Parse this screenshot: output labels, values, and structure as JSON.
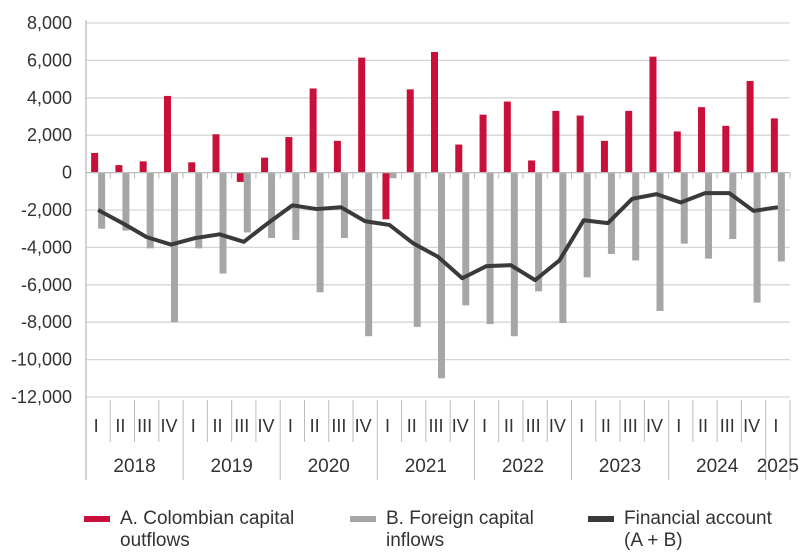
{
  "chart_data": {
    "type": "bar",
    "categories": [
      "I",
      "II",
      "III",
      "IV",
      "I",
      "II",
      "III",
      "IV",
      "I",
      "II",
      "III",
      "IV",
      "I",
      "II",
      "III",
      "IV",
      "I",
      "II",
      "III",
      "IV",
      "I",
      "II",
      "III",
      "IV",
      "I",
      "II",
      "III",
      "IV",
      "I"
    ],
    "years": [
      {
        "label": "2018",
        "quarters": 4
      },
      {
        "label": "2019",
        "quarters": 4
      },
      {
        "label": "2020",
        "quarters": 4
      },
      {
        "label": "2021",
        "quarters": 4
      },
      {
        "label": "2022",
        "quarters": 4
      },
      {
        "label": "2023",
        "quarters": 4
      },
      {
        "label": "2024",
        "quarters": 4
      },
      {
        "label": "2025",
        "quarters": 1
      }
    ],
    "ylim": [
      -12000,
      8000
    ],
    "yticks": [
      8000,
      6000,
      4000,
      2000,
      0,
      -2000,
      -4000,
      -6000,
      -8000,
      -10000,
      -12000
    ],
    "ytick_labels": [
      "8,000",
      "6,000",
      "4,000",
      "2,000",
      "0",
      "-2,000",
      "-4,000",
      "-6,000",
      "-8,000",
      "-10,000",
      "-12,000"
    ],
    "grid": true,
    "legend_placement": "bottom",
    "series": [
      {
        "name": "A. Colombian capital outflows",
        "type": "bar",
        "color": "#c8103a",
        "values": [
          1050,
          400,
          600,
          4100,
          550,
          2050,
          -500,
          800,
          1900,
          4500,
          1700,
          6150,
          -2500,
          4450,
          6450,
          1500,
          3100,
          3800,
          650,
          3300,
          3050,
          1700,
          3300,
          6200,
          2200,
          3500,
          2500,
          4900,
          2900
        ]
      },
      {
        "name": "B. Foreign capital inflows",
        "type": "bar",
        "color": "#a6a6a6",
        "values": [
          -3000,
          -3100,
          -4050,
          -8000,
          -4050,
          -5400,
          -3200,
          -3500,
          -3600,
          -6400,
          -3500,
          -8750,
          -300,
          -8250,
          -11000,
          -7100,
          -8100,
          -8750,
          -6350,
          -8050,
          -5600,
          -4350,
          -4700,
          -7400,
          -3800,
          -4600,
          -3550,
          -6950,
          -4750
        ]
      },
      {
        "name": "Financial account (A + B)",
        "type": "line",
        "color": "#3a3a3a",
        "values": [
          -2000,
          -2700,
          -3450,
          -3850,
          -3500,
          -3300,
          -3700,
          -2700,
          -1750,
          -1950,
          -1850,
          -2600,
          -2800,
          -3800,
          -4500,
          -5650,
          -5000,
          -4950,
          -5750,
          -4700,
          -2550,
          -2700,
          -1400,
          -1150,
          -1600,
          -1100,
          -1100,
          -2050,
          -1850
        ]
      }
    ]
  },
  "legend": [
    {
      "line1": "A. Colombian capital",
      "line2": "outflows"
    },
    {
      "line1": "B. Foreign capital",
      "line2": "inflows"
    },
    {
      "line1": "Financial account",
      "line2": "(A + B)"
    }
  ]
}
